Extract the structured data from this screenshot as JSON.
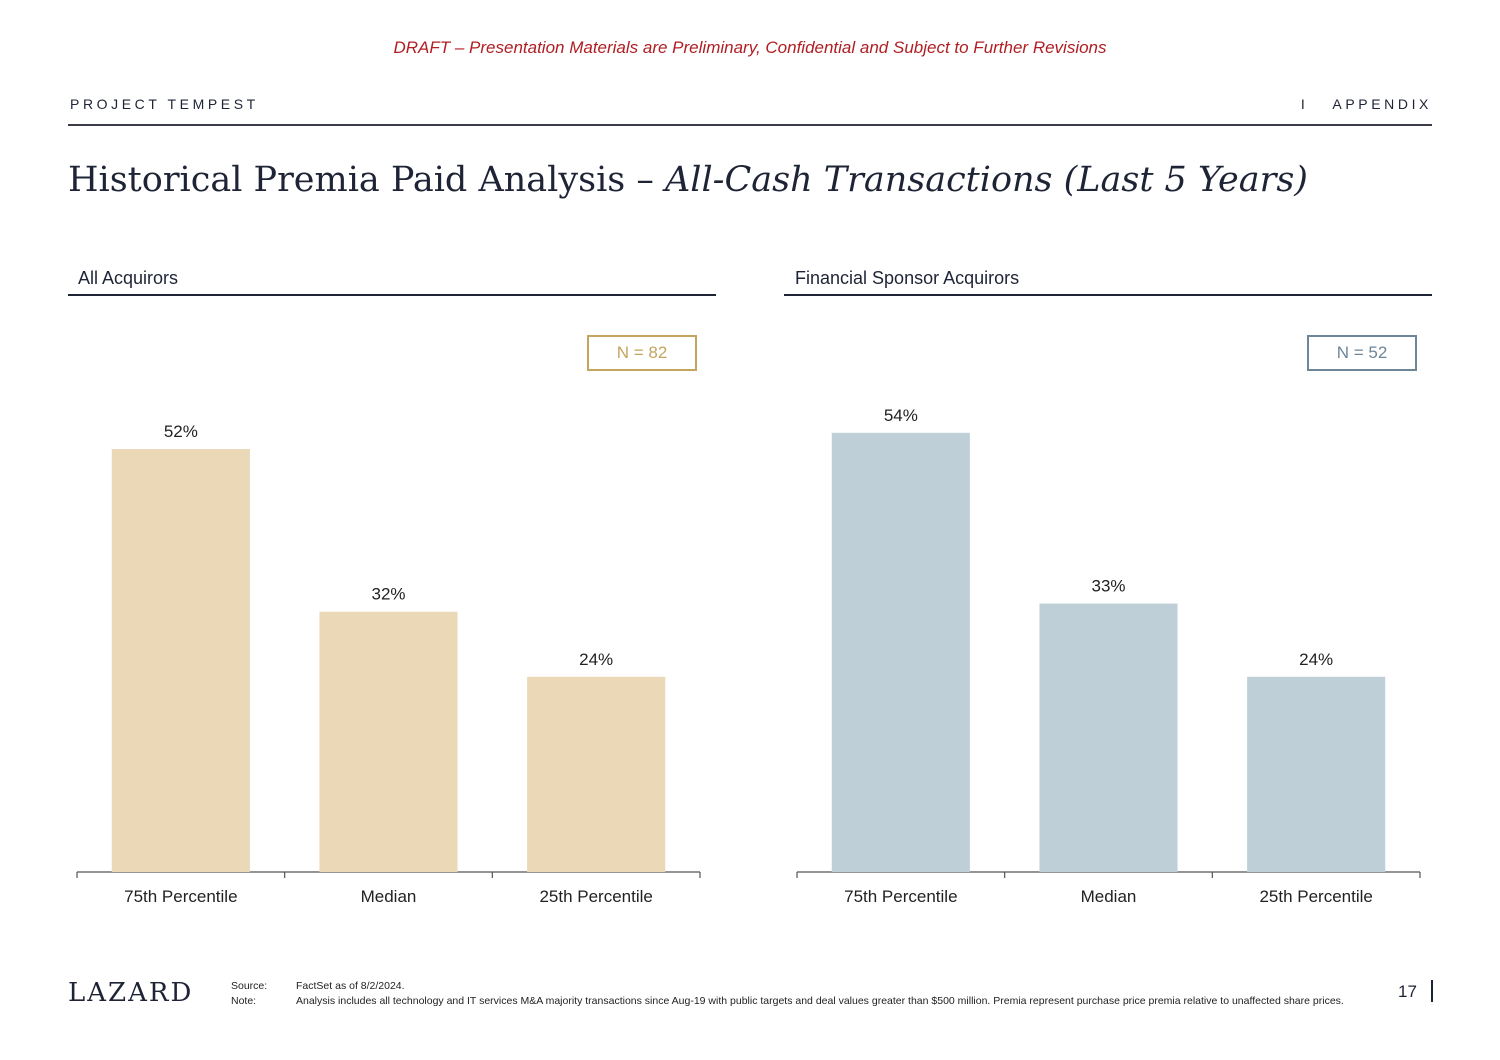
{
  "header": {
    "draft_notice": "DRAFT – Presentation Materials are Preliminary, Confidential and Subject to Further Revisions",
    "project": "PROJECT TEMPEST",
    "separator": "I",
    "section": "APPENDIX"
  },
  "title": {
    "main": "Historical Premia Paid Analysis –",
    "italic": "All-Cash Transactions (Last 5 Years)"
  },
  "chart_data": [
    {
      "type": "bar",
      "title": "All Acquirors",
      "n_label": "N = 82",
      "categories": [
        "75th Percentile",
        "Median",
        "25th Percentile"
      ],
      "values": [
        52,
        32,
        24
      ],
      "value_labels": [
        "52%",
        "32%",
        "24%"
      ],
      "unit": "%",
      "ylim": [
        0,
        60
      ],
      "color": "#EAD8B6",
      "accent_color": "#C4A55E",
      "grid": false
    },
    {
      "type": "bar",
      "title": "Financial Sponsor Acquirors",
      "n_label": "N = 52",
      "categories": [
        "75th Percentile",
        "Median",
        "25th Percentile"
      ],
      "values": [
        54,
        33,
        24
      ],
      "value_labels": [
        "54%",
        "33%",
        "24%"
      ],
      "unit": "%",
      "ylim": [
        0,
        60
      ],
      "color": "#BFCFD8",
      "accent_color": "#6D8698",
      "grid": false
    }
  ],
  "footer": {
    "logo": "LAZARD",
    "source_label": "Source:",
    "source_text": "FactSet as of 8/2/2024.",
    "note_label": "Note:",
    "note_text": "Analysis includes all technology and IT services M&A majority transactions since Aug-19 with public targets and deal values greater than $500 million. Premia represent purchase price premia relative to unaffected share prices.",
    "page_number": "17"
  }
}
